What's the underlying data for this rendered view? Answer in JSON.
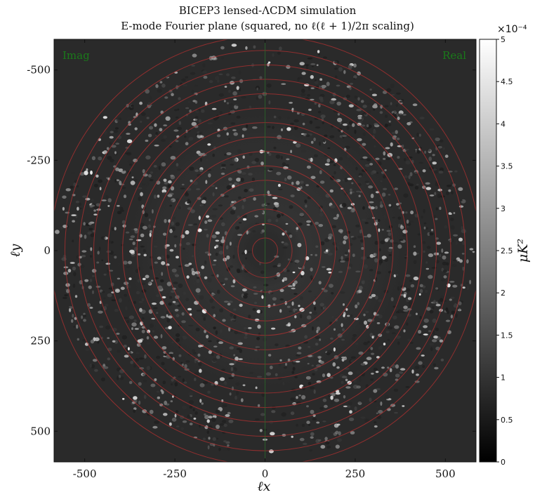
{
  "chart_data": {
    "type": "heatmap",
    "title_line1": "BICEP3 lensed-ΛCDM simulation",
    "title_line2": "E-mode Fourier plane (squared, no ℓ(ℓ + 1)/2π scaling)",
    "xlabel": "ℓx",
    "ylabel": "ℓy",
    "x_ticks": [
      "-500",
      "-250",
      "0",
      "250",
      "500"
    ],
    "y_ticks": [
      "-500",
      "-250",
      "0",
      "250",
      "500"
    ],
    "x_tick_values": [
      -500,
      -250,
      0,
      250,
      500
    ],
    "y_tick_values": [
      -500,
      -250,
      0,
      250,
      500
    ],
    "xlim": [
      -585,
      585
    ],
    "ylim": [
      -585,
      585
    ],
    "y_axis_inverted": true,
    "corner_labels": {
      "left": "Imag",
      "right": "Real"
    },
    "colorbar": {
      "label": "μK²",
      "exponent": "×10⁻⁴",
      "range": [
        0,
        5
      ],
      "ticks": [
        "0",
        "0.5",
        "1",
        "1.5",
        "2",
        "2.5",
        "3",
        "3.5",
        "4",
        "4.5",
        "5"
      ],
      "tick_values": [
        0,
        0.5,
        1,
        1.5,
        2,
        2.5,
        3,
        3.5,
        4,
        4.5,
        5
      ],
      "colormap": "gray"
    },
    "overlay_circles_ell": [
      35,
      75,
      115,
      155,
      195,
      235,
      275,
      315,
      355,
      395,
      435,
      475,
      515,
      555,
      595
    ],
    "circle_color": "#b33030",
    "crosshair_color": "#2a6a2a",
    "background_color": "#2a2a2a"
  }
}
